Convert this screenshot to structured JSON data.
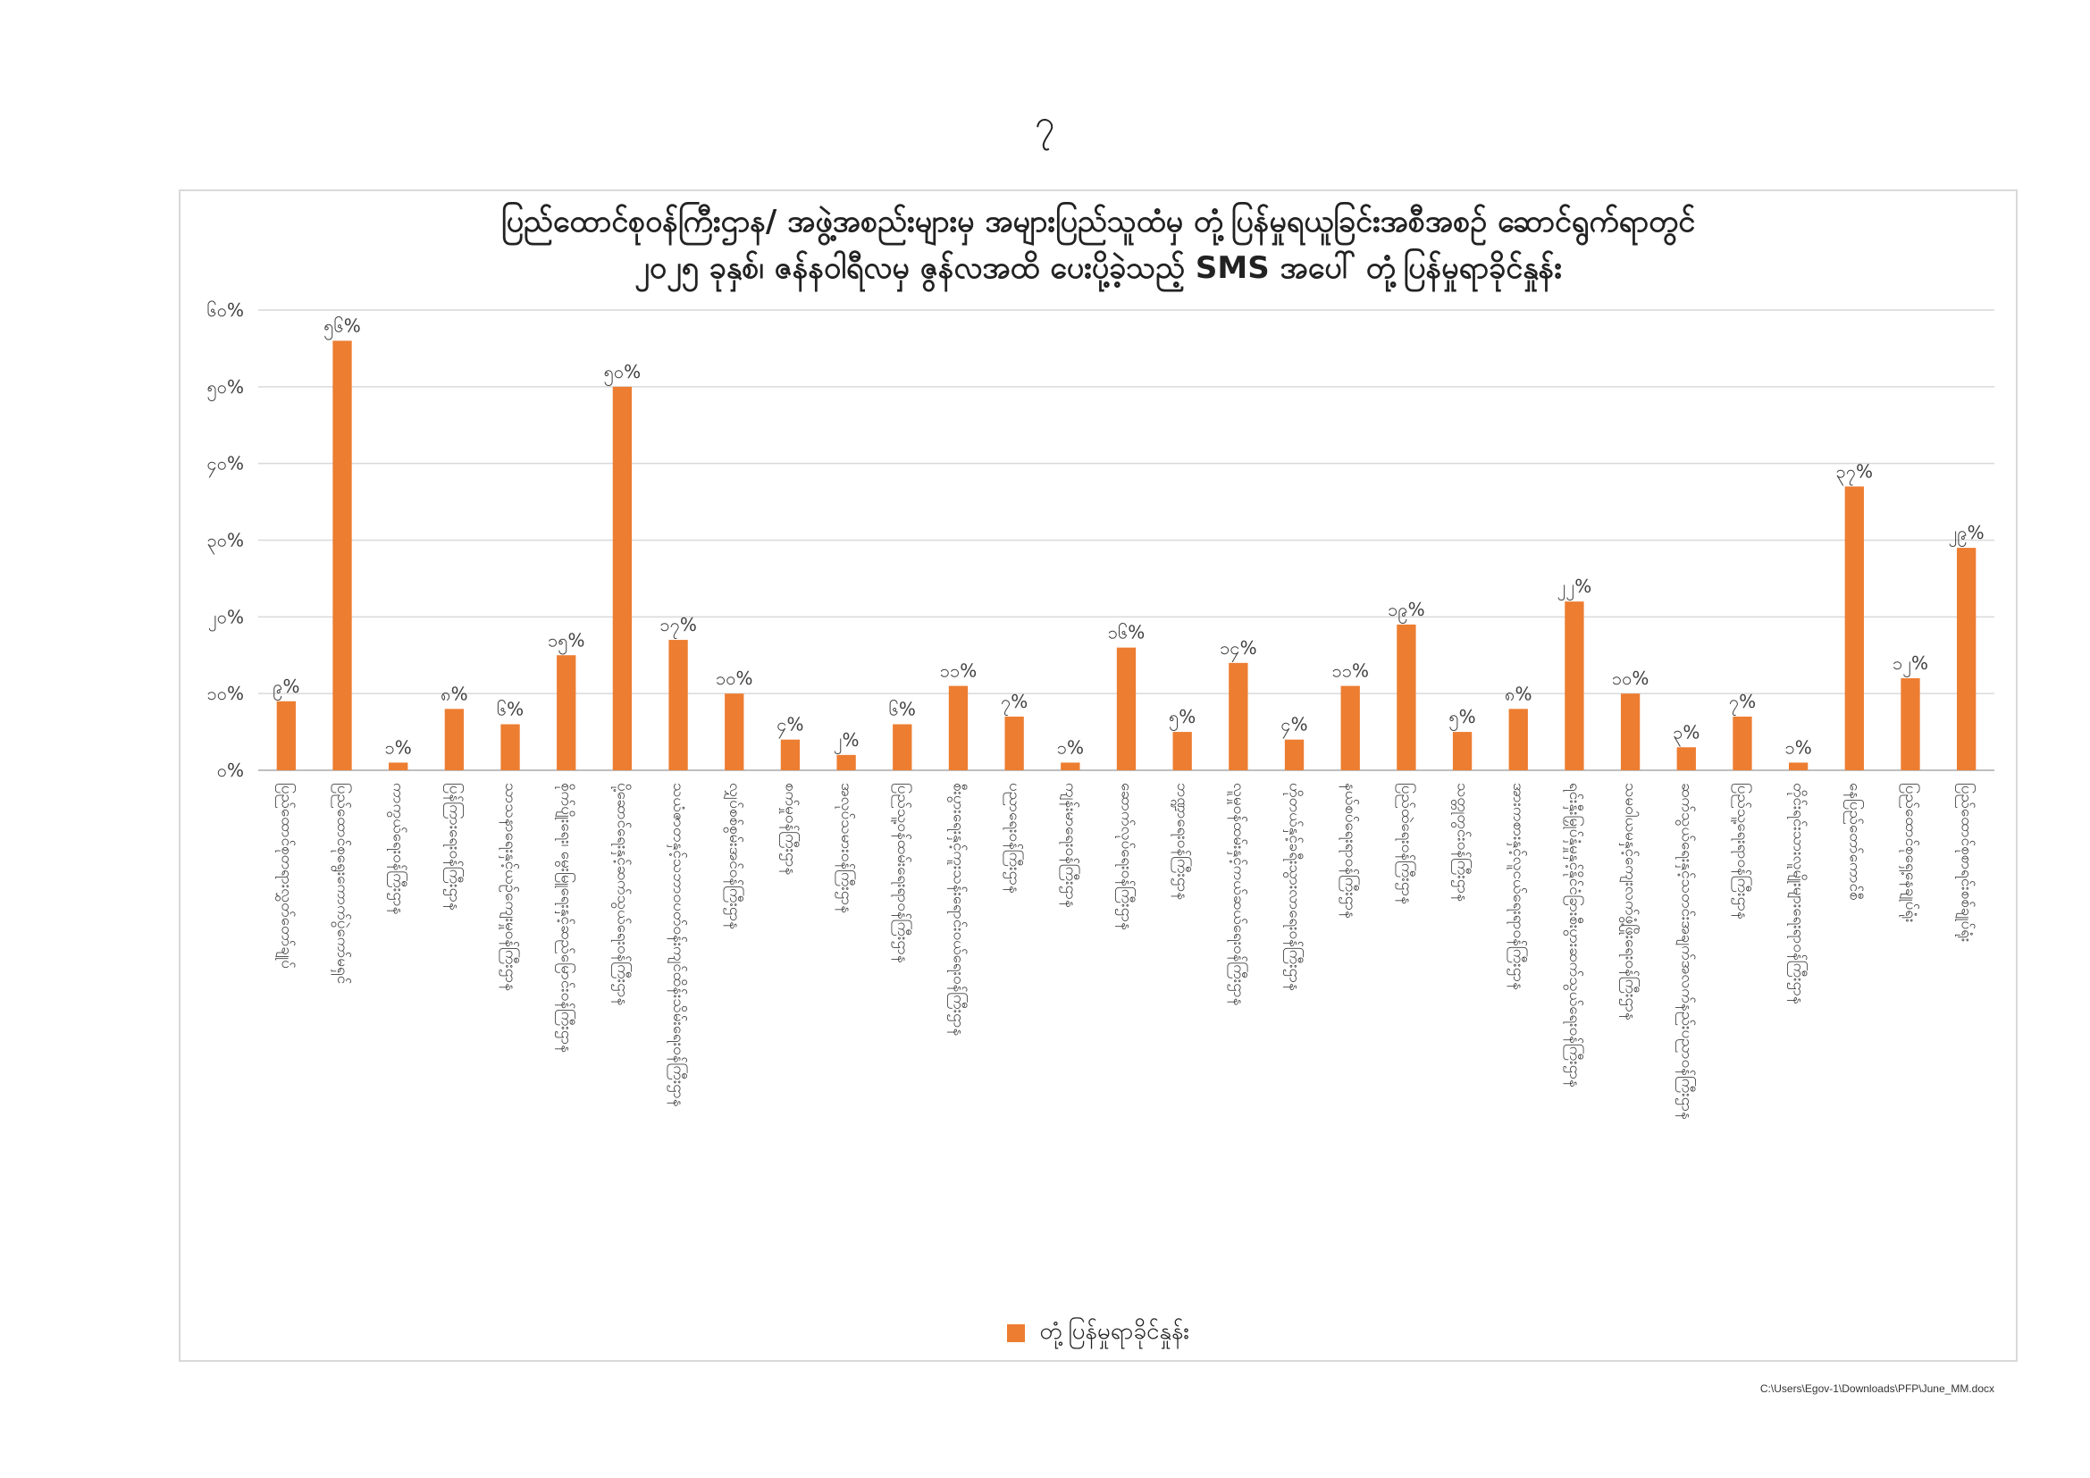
{
  "page": {
    "page_number": "၇",
    "file_path": "C:\\Users\\Egov-1\\Downloads\\PFP\\June_MM.docx"
  },
  "chart_data": {
    "type": "bar",
    "title_line1": "ပြည်ထောင်စုဝန်ကြီးဌာန/ အဖွဲ့အစည်းများမှ အများပြည်သူထံမှ တုံ့ပြန်မှုရယူခြင်းအစီအစဉ် ဆောင်ရွက်ရာတွင်",
    "title_line2": "၂၀၂၅ ခုနှစ်၊ ဇန်နဝါရီလမှ ဇွန်လအထိ ပေးပို့ခဲ့သည့် SMS အပေါ် တုံ့ပြန်မှုရာခိုင်နှုန်း",
    "xlabel": "",
    "ylabel": "",
    "ylim": [
      0,
      60
    ],
    "yticks": [
      "၀%",
      "၁၀%",
      "၂၀%",
      "၃၀%",
      "၄၀%",
      "၅၀%",
      "၆၀%"
    ],
    "grid": true,
    "legend_position": "bottom",
    "color": "#ED7D31",
    "series": [
      {
        "name": "တုံ့ပြန်မှုရာခိုင်နှုန်း",
        "values": [
          9,
          56,
          1,
          8,
          6,
          15,
          50,
          17,
          10,
          4,
          2,
          6,
          11,
          7,
          1,
          16,
          5,
          14,
          4,
          11,
          19,
          5,
          8,
          22,
          10,
          3,
          7,
          1,
          37,
          12,
          29
        ],
        "labels": [
          "၉%",
          "၅၆%",
          "၁%",
          "၈%",
          "၆%",
          "၁၅%",
          "၅၀%",
          "၁၇%",
          "၁၀%",
          "၄%",
          "၂%",
          "၆%",
          "၁၁%",
          "၇%",
          "၁%",
          "၁၆%",
          "၅%",
          "၁၄%",
          "၄%",
          "၁၁%",
          "၁၉%",
          "၅%",
          "၈%",
          "၂၂%",
          "၁၀%",
          "၃%",
          "၇%",
          "၁%",
          "၃၇%",
          "၁၂%",
          "၂၉%"
        ]
      }
    ],
    "categories": [
      "ပြည်ထောင်စုတရားလွှတ်တော်ချုပ်",
      "ပြည်ထောင်စုရွေးကောက်ပွဲကော်မရှင်",
      "ကာကွယ်ရေးဝန်ကြီးဌာန",
      "ပြန်ကြားရေးဝန်ကြီးဌာန",
      "သာသနာရေးနှင့်ယဉ်ကျေးမှုဝန်ကြီးဌာန",
      "စိုက်ပျိုးရေး၊ မွေးမြူရေးနှင့်ဆည်မြောင်းဝန်ကြီးဌာန",
      "ပို့ဆောင်ရေးနှင့်ဆက်သွယ်ရေးဝန်ကြီးဌာန",
      "သယံဇာတနှင့်သဘာဝပတ်ဝန်းကျင်ထိန်းသိမ်းရေးဝန်ကြီးဌာန",
      "လျှပ်စစ်စွမ်းအင်ဝန်ကြီးဌာန",
      "စက်မှုဝန်ကြီးဌာန",
      "အလုပ်သမားဝန်ကြီးဌာန",
      "ပြည်သူ့ဝန်ထမ်းရေးရာဝန်ကြီးဌာန",
      "စီးပွားရေးနှင့်ကူးသန်းရောင်းဝယ်ရေးဝန်ကြီးဌာန",
      "ပညာရေးဝန်ကြီးဌာန",
      "ကျန်းမာရေးဝန်ကြီးဌာန",
      "ဆောက်လုပ်ရေးဝန်ကြီးဌာန",
      "ဘဏ္ဍာရေးဝန်ကြီးဌာန",
      "လူမှုဝန်ထမ်းနှင့်ကယ်ဆယ်ရေးဝန်ကြီးဌာန",
      "ဟိုတယ်နှင့်ခရီးသွားလာရေးဝန်ကြီးဌာန",
      "နယ်စပ်ရေးရာဝန်ကြီးဌာန",
      "ပြည်ထဲရေးဝန်ကြီးဌာန",
      "သတ္တုတွင်းဝန်ကြီးဌာန",
      "အားကစားနှင့်လူငယ်ရေးရာဝန်ကြီးဌာန",
      "ရင်းနှီးမြှုပ်နှံမှုနှင့်နိုင်ငံခြားစီးပွားဆက်သွယ်ရေးဝန်ကြီးဌာန",
      "သမဝါယမနှင့်ကျေးလက်ဖွံ့ဖြိုးရေးဝန်ကြီးဌာန",
      "ဆက်သွယ်ရေးနှင့်သတင်းအချက်အလက်နည်းပညာဝန်ကြီးဌာန",
      "ပြည်သူ့ရေးရာဝန်ကြီးဌာန",
      "တိုင်းရင်းသားလူမျိုးများရေးရာဝန်ကြီးဌာန",
      "နေပြည်တော်ကောင်စီ",
      "ပြည်ထောင်စုရှေ့နေချုပ်ရုံး",
      "ပြည်ထောင်စုစာရင်းစစ်ချုပ်ရုံး"
    ]
  }
}
